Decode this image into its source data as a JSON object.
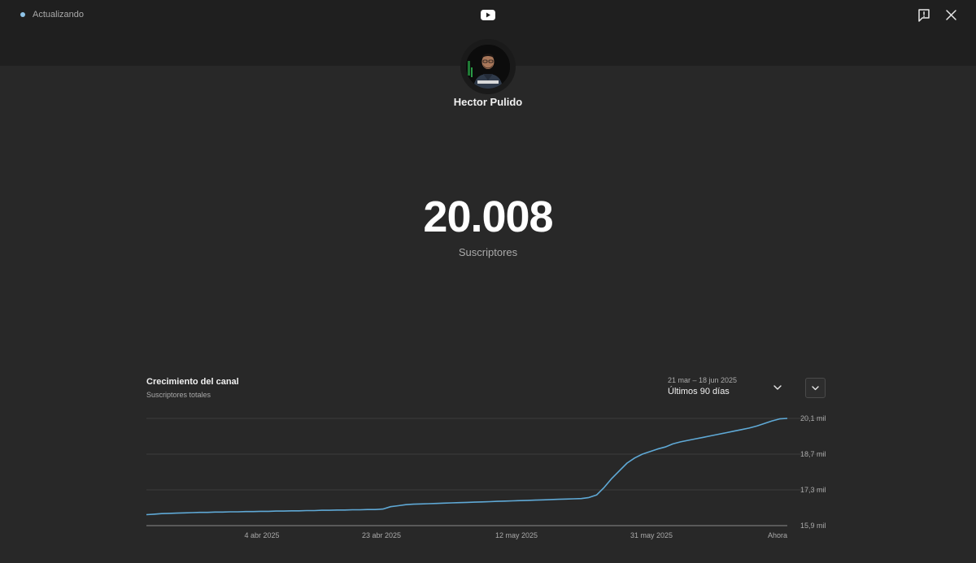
{
  "status": {
    "text": "Actualizando",
    "dot_color": "#8ec3e8"
  },
  "header": {
    "logo_icon": "youtube-icon",
    "feedback_icon": "report-feedback-icon",
    "close_icon": "close-icon"
  },
  "channel": {
    "name": "Hector Pulido",
    "avatar_icon": "channel-avatar"
  },
  "subscribers": {
    "count": "20.008",
    "label": "Suscriptores"
  },
  "growth": {
    "title": "Crecimiento del canal",
    "subtitle": "Suscriptores totales",
    "range_dates": "21 mar – 18 jun 2025",
    "range_label": "Últimos 90 días",
    "dropdown_icon": "chevron-down-icon",
    "expand_icon": "chevron-down-icon"
  },
  "chart_data": {
    "type": "line",
    "title": "Crecimiento del canal",
    "subtitle": "Suscriptores totales",
    "x_tick_labels": [
      "4 abr 2025",
      "23 abr 2025",
      "12 may 2025",
      "31 may 2025",
      "Ahora"
    ],
    "y_tick_labels": [
      "20,1 mil",
      "18,7 mil",
      "17,3 mil",
      "15,9 mil"
    ],
    "ylim": [
      15.9,
      20.1
    ],
    "y_unit": "mil",
    "grid": true,
    "line_color": "#5fa9d6",
    "series": [
      {
        "values": [
          16.33,
          16.35,
          16.37,
          16.38,
          16.39,
          16.4,
          16.41,
          16.42,
          16.42,
          16.43,
          16.43,
          16.44,
          16.44,
          16.45,
          16.45,
          16.46,
          16.46,
          16.47,
          16.47,
          16.48,
          16.48,
          16.49,
          16.49,
          16.5,
          16.5,
          16.51,
          16.51,
          16.52,
          16.52,
          16.53,
          16.53,
          16.55,
          16.64,
          16.68,
          16.72,
          16.74,
          16.75,
          16.76,
          16.77,
          16.78,
          16.79,
          16.8,
          16.81,
          16.82,
          16.83,
          16.84,
          16.85,
          16.86,
          16.87,
          16.88,
          16.89,
          16.9,
          16.91,
          16.92,
          16.93,
          16.94,
          16.95,
          16.96,
          17.0,
          17.1,
          17.4,
          17.75,
          18.05,
          18.35,
          18.55,
          18.7,
          18.8,
          18.9,
          18.98,
          19.1,
          19.18,
          19.24,
          19.3,
          19.36,
          19.42,
          19.48,
          19.54,
          19.6,
          19.66,
          19.72,
          19.8,
          19.9,
          20.0,
          20.08,
          20.1
        ]
      }
    ]
  }
}
